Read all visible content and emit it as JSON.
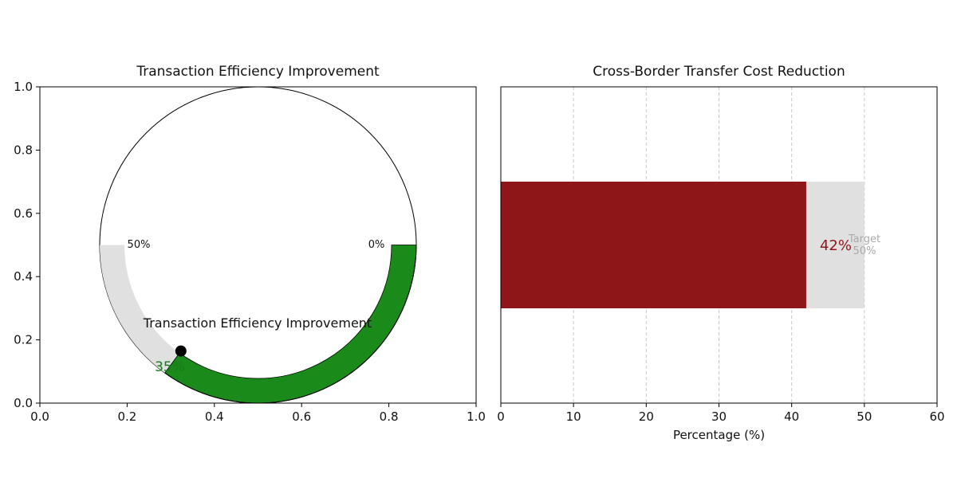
{
  "chart_data": [
    {
      "type": "gauge",
      "title": "Transaction Efficiency Improvement",
      "center_label": "Transaction Efficiency Improvement",
      "value": 35,
      "value_label": "35%",
      "gauge_min": 0,
      "gauge_max": 50,
      "min_label": "0%",
      "max_label": "50%",
      "xlim": [
        0,
        1
      ],
      "ylim": [
        0,
        1
      ],
      "xticks": [
        "0.0",
        "0.2",
        "0.4",
        "0.6",
        "0.8",
        "1.0"
      ],
      "yticks": [
        "0.0",
        "0.2",
        "0.4",
        "0.6",
        "0.8",
        "1.0"
      ],
      "fill_color": "#1a8a1a",
      "track_color": "#e0e0e0",
      "value_text_color": "#1a7a1a"
    },
    {
      "type": "bar",
      "orientation": "horizontal",
      "title": "Cross-Border Transfer Cost Reduction",
      "xlabel": "Percentage (%)",
      "value": 42,
      "value_label": "42%",
      "target": 50,
      "target_label_line1": "Target",
      "target_label_line2": "50%",
      "xlim": [
        0,
        60
      ],
      "xticks": [
        "0",
        "10",
        "20",
        "30",
        "40",
        "50",
        "60"
      ],
      "grid": "vertical dashed",
      "bar_color": "#8e1518",
      "target_color": "#e0e0e0",
      "value_text_color": "#8e1518",
      "target_text_color": "#aaaaaa"
    }
  ]
}
